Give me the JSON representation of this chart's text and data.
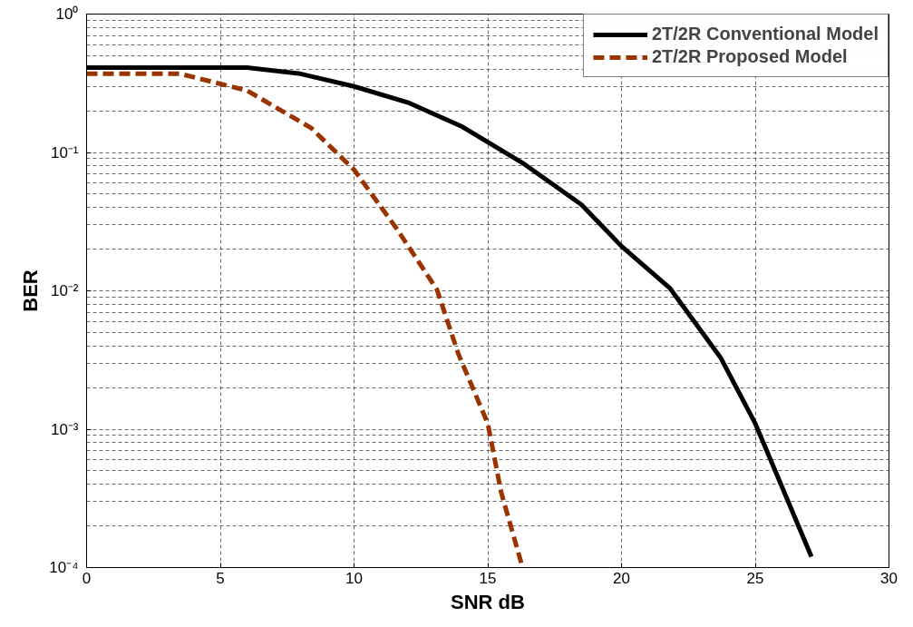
{
  "chart_data": {
    "type": "line",
    "xlabel": "SNR dB",
    "ylabel": "BER",
    "log": "y",
    "grid": true,
    "legend": "top right",
    "xlim": [
      0,
      30
    ],
    "xticks": [
      0,
      5,
      10,
      15,
      20,
      25,
      30
    ],
    "ylim": [
      0.0001,
      1
    ],
    "yticks": [
      {
        "value": 0.0001,
        "label": "10⁻⁴"
      },
      {
        "value": 0.001,
        "label": "10⁻³"
      },
      {
        "value": 0.01,
        "label": "10⁻²"
      },
      {
        "value": 0.1,
        "label": "10⁻¹"
      },
      {
        "value": 1,
        "label": "10⁰"
      }
    ],
    "series": [
      {
        "name": "2T/2R Conventional Model",
        "color": "#000000",
        "line_style": "solid",
        "x": [
          0,
          6,
          8,
          10,
          12,
          14,
          16.3,
          18.5,
          20,
          21.8,
          23.7,
          25,
          27.1
        ],
        "values": [
          0.41,
          0.41,
          0.37,
          0.3,
          0.23,
          0.155,
          0.084,
          0.042,
          0.021,
          0.0105,
          0.0033,
          0.0011,
          0.00012
        ]
      },
      {
        "name": "2T/2R Proposed Model",
        "color": "#993300",
        "line_style": "dashed",
        "x": [
          0,
          3.5,
          6,
          8.4,
          10,
          11.6,
          13.1,
          13.9,
          15,
          15.5,
          16.3
        ],
        "values": [
          0.37,
          0.37,
          0.28,
          0.15,
          0.075,
          0.028,
          0.0102,
          0.0035,
          0.0011,
          0.00035,
          0.0001
        ]
      }
    ]
  }
}
